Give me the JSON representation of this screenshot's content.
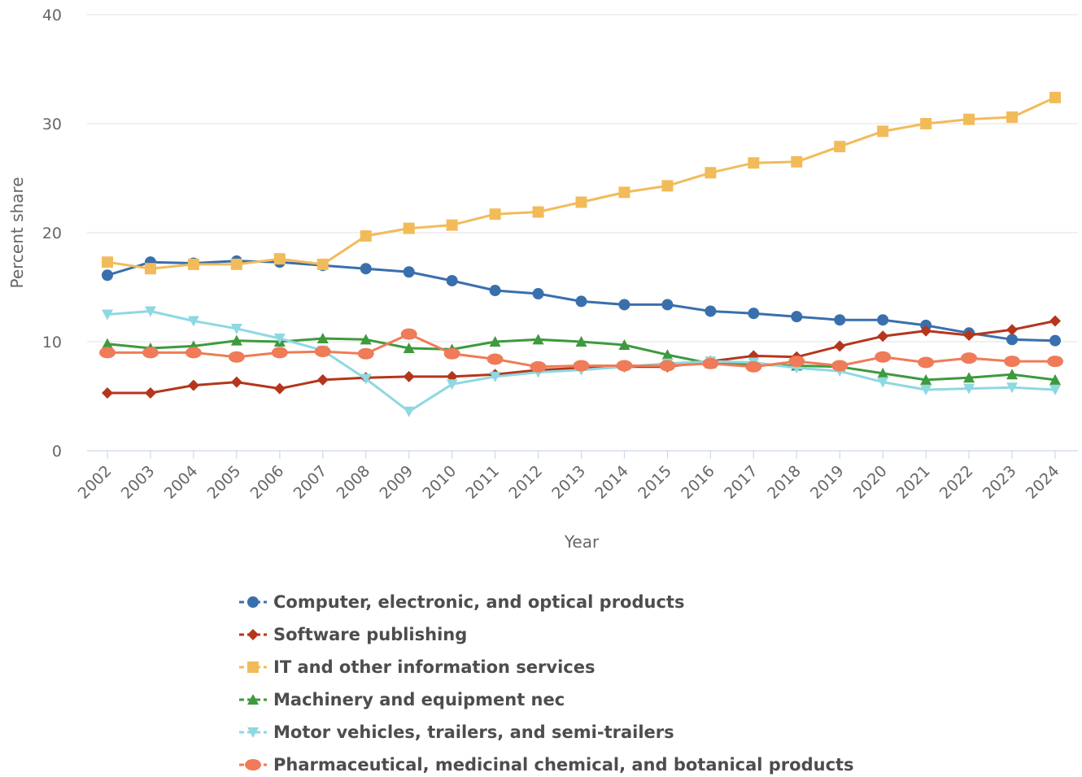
{
  "chart_data": {
    "type": "line",
    "title": "",
    "xlabel": "Year",
    "ylabel": "Percent share",
    "ylim": [
      0,
      40
    ],
    "yticks": [
      0,
      10,
      20,
      30,
      40
    ],
    "grid": "horizontal",
    "legend_position": "bottom",
    "categories": [
      "2002",
      "2003",
      "2004",
      "2005",
      "2006",
      "2007",
      "2008",
      "2009",
      "2010",
      "2011",
      "2012",
      "2013",
      "2014",
      "2015",
      "2016",
      "2017",
      "2018",
      "2019",
      "2020",
      "2021",
      "2022",
      "2023",
      "2024"
    ],
    "series": [
      {
        "name": "Computer, electronic, and optical products",
        "color": "#3a6fad",
        "marker": "circle",
        "values": [
          16.1,
          17.3,
          17.2,
          17.4,
          17.3,
          17.0,
          16.7,
          16.4,
          15.6,
          14.7,
          14.4,
          13.7,
          13.4,
          13.4,
          12.8,
          12.6,
          12.3,
          12.0,
          12.0,
          11.5,
          10.8,
          10.2,
          10.1
        ]
      },
      {
        "name": "Software publishing",
        "color": "#b5361c",
        "marker": "diamond",
        "values": [
          5.3,
          5.3,
          6.0,
          6.3,
          5.7,
          6.5,
          6.7,
          6.8,
          6.8,
          7.0,
          7.4,
          7.6,
          7.7,
          7.7,
          8.2,
          8.7,
          8.6,
          9.6,
          10.5,
          11.0,
          10.6,
          11.1,
          11.9
        ]
      },
      {
        "name": "IT and other information services",
        "color": "#f2bb5a",
        "marker": "square",
        "values": [
          17.3,
          16.7,
          17.1,
          17.1,
          17.6,
          17.1,
          19.7,
          20.4,
          20.7,
          21.7,
          21.9,
          22.8,
          23.7,
          24.3,
          25.5,
          26.4,
          26.5,
          27.9,
          29.3,
          30.0,
          30.4,
          30.6,
          32.4
        ]
      },
      {
        "name": "Machinery and equipment nec",
        "color": "#3d9a3d",
        "marker": "triangle-up",
        "values": [
          9.8,
          9.4,
          9.6,
          10.1,
          10.0,
          10.3,
          10.2,
          9.4,
          9.3,
          10.0,
          10.2,
          10.0,
          9.7,
          8.8,
          8.0,
          7.9,
          7.8,
          7.7,
          7.1,
          6.5,
          6.7,
          7.0,
          6.5
        ]
      },
      {
        "name": "Motor vehicles, trailers, and semi-trailers",
        "color": "#8ed8e2",
        "marker": "triangle-down",
        "values": [
          12.5,
          12.8,
          11.9,
          11.2,
          10.3,
          9.2,
          6.6,
          3.6,
          6.1,
          6.8,
          7.2,
          7.4,
          7.7,
          8.0,
          8.2,
          8.1,
          7.6,
          7.3,
          6.3,
          5.6,
          5.7,
          5.8,
          5.6
        ]
      },
      {
        "name": "Pharmaceutical, medicinal chemical, and botanical products",
        "color": "#ef7b58",
        "marker": "ellipse",
        "values": [
          9.0,
          9.0,
          9.0,
          8.6,
          9.0,
          9.1,
          8.9,
          10.7,
          8.9,
          8.4,
          7.7,
          7.8,
          7.8,
          7.8,
          8.0,
          7.7,
          8.2,
          7.8,
          8.6,
          8.1,
          8.5,
          8.2,
          8.2
        ]
      }
    ]
  }
}
